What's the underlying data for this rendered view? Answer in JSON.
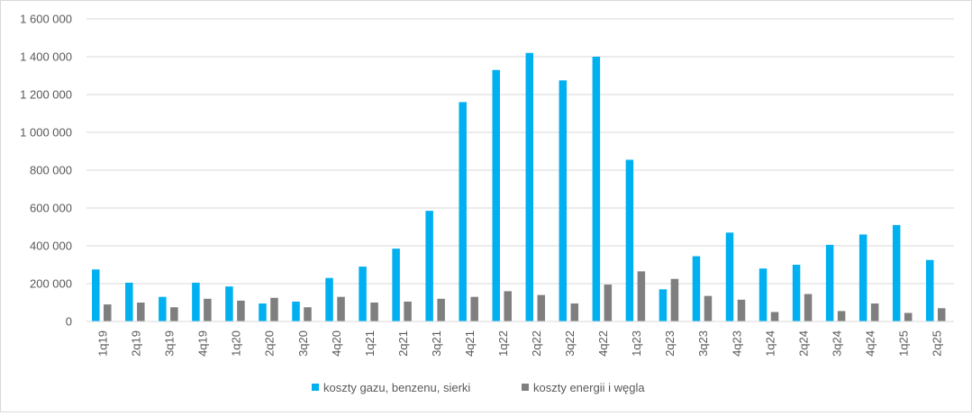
{
  "chart_data": {
    "type": "bar",
    "title": "",
    "xlabel": "",
    "ylabel": "",
    "ylim": [
      0,
      1600000
    ],
    "yticks": [
      0,
      200000,
      400000,
      600000,
      800000,
      1000000,
      1200000,
      1400000,
      1600000
    ],
    "ytick_labels": [
      "0",
      "200 000",
      "400 000",
      "600 000",
      "800 000",
      "1 000 000",
      "1 200 000",
      "1 400 000",
      "1 600 000"
    ],
    "grid": true,
    "legend_position": "bottom",
    "categories": [
      "1q19",
      "2q19",
      "3q19",
      "4q19",
      "1q20",
      "2q20",
      "3q20",
      "4q20",
      "1q21",
      "2q21",
      "3q21",
      "4q21",
      "1q22",
      "2q22",
      "3q22",
      "4q22",
      "1q23",
      "2q23",
      "3q23",
      "4q23",
      "1q24",
      "2q24",
      "3q24",
      "4q24",
      "1q25",
      "2q25"
    ],
    "series": [
      {
        "name": "koszty gazu, benzenu, sierki",
        "color": "#00b0f0",
        "values": [
          275000,
          205000,
          130000,
          205000,
          185000,
          95000,
          105000,
          230000,
          290000,
          385000,
          585000,
          1160000,
          1330000,
          1420000,
          1275000,
          1400000,
          855000,
          170000,
          345000,
          470000,
          280000,
          300000,
          405000,
          460000,
          510000,
          325000
        ]
      },
      {
        "name": "koszty energii i węgla",
        "color": "#7f7f7f",
        "values": [
          90000,
          100000,
          75000,
          120000,
          110000,
          125000,
          75000,
          130000,
          100000,
          105000,
          120000,
          130000,
          160000,
          140000,
          95000,
          195000,
          265000,
          225000,
          135000,
          115000,
          50000,
          145000,
          55000,
          95000,
          45000,
          70000
        ]
      }
    ]
  }
}
